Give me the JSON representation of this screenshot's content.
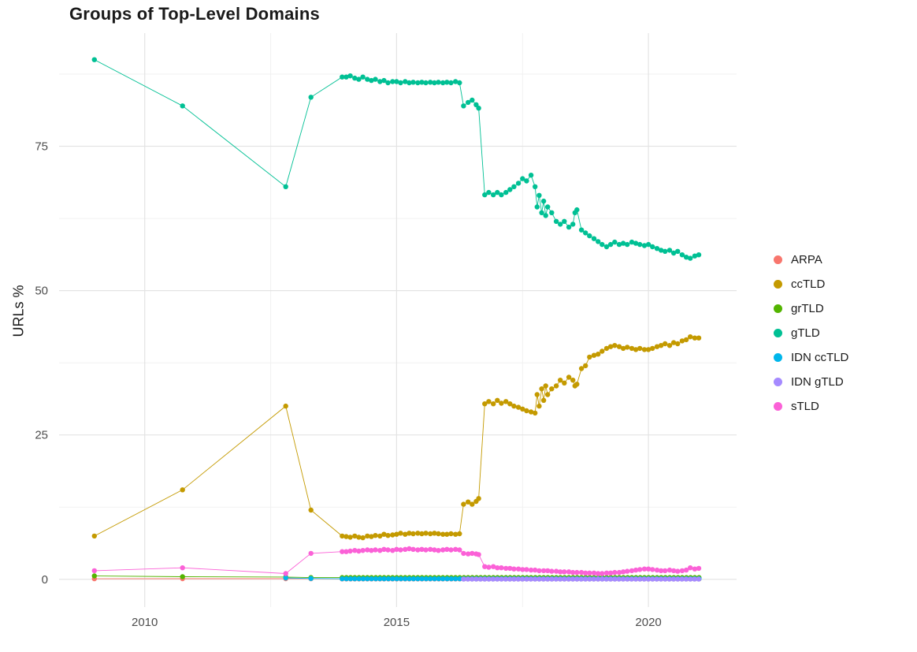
{
  "chart_data": {
    "type": "line",
    "title": "Groups of Top-Level Domains",
    "xlabel": "",
    "ylabel": "URLs %",
    "xlim": [
      2008.3,
      2021.75
    ],
    "ylim": [
      -4.8,
      94.6
    ],
    "x_ticks": [
      2010,
      2015,
      2020
    ],
    "x_tick_labels": [
      "2010",
      "2015",
      "2020"
    ],
    "x_minor": [
      2012.5,
      2017.5
    ],
    "y_ticks": [
      0,
      25,
      50,
      75
    ],
    "y_tick_labels": [
      "0",
      "25",
      "50",
      "75"
    ],
    "y_minor": [
      12.5,
      37.5,
      62.5,
      87.5
    ],
    "grid": true,
    "legend_position": "right",
    "point_radius": 3.2,
    "line_width": 0.9,
    "colors": {
      "background": "#FFFFFF",
      "grid_major": "#E3E3E3",
      "grid_minor": "#F1F1F1",
      "axis_text": "#4D4D4D",
      "title_text": "#1A1A1A"
    },
    "series": [
      {
        "id": "arpa",
        "name": "ARPA",
        "color": "#F8766D",
        "points": [
          [
            2009,
            0.1
          ],
          [
            2010.75,
            0.12
          ],
          [
            2012.8,
            0.12
          ],
          [
            2013.3,
            0.1
          ]
        ],
        "flat": {
          "from": 2013.92,
          "to": 2021,
          "y": 0.08
        }
      },
      {
        "id": "cctld",
        "name": "ccTLD",
        "color": "#C49A00",
        "points": [
          [
            2009,
            7.5
          ],
          [
            2010.75,
            15.5
          ],
          [
            2012.8,
            30
          ],
          [
            2013.3,
            12
          ],
          [
            2013.92,
            7.5
          ],
          [
            2014,
            7.4
          ],
          [
            2014.08,
            7.3
          ],
          [
            2014.17,
            7.5
          ],
          [
            2014.25,
            7.3
          ],
          [
            2014.33,
            7.2
          ],
          [
            2014.42,
            7.5
          ],
          [
            2014.5,
            7.4
          ],
          [
            2014.58,
            7.6
          ],
          [
            2014.67,
            7.5
          ],
          [
            2014.75,
            7.8
          ],
          [
            2014.83,
            7.6
          ],
          [
            2014.92,
            7.7
          ],
          [
            2015,
            7.8
          ],
          [
            2015.08,
            8
          ],
          [
            2015.17,
            7.8
          ],
          [
            2015.25,
            8
          ],
          [
            2015.33,
            7.9
          ],
          [
            2015.42,
            8
          ],
          [
            2015.5,
            7.9
          ],
          [
            2015.58,
            8
          ],
          [
            2015.67,
            7.9
          ],
          [
            2015.75,
            8
          ],
          [
            2015.83,
            7.9
          ],
          [
            2015.92,
            7.8
          ],
          [
            2016,
            7.8
          ],
          [
            2016.08,
            7.9
          ],
          [
            2016.17,
            7.8
          ],
          [
            2016.25,
            7.9
          ],
          [
            2016.33,
            13
          ],
          [
            2016.42,
            13.4
          ],
          [
            2016.5,
            13
          ],
          [
            2016.58,
            13.5
          ],
          [
            2016.63,
            14
          ],
          [
            2016.75,
            30.4
          ],
          [
            2016.83,
            30.8
          ],
          [
            2016.92,
            30.4
          ],
          [
            2017,
            31
          ],
          [
            2017.08,
            30.5
          ],
          [
            2017.17,
            30.8
          ],
          [
            2017.25,
            30.4
          ],
          [
            2017.33,
            30
          ],
          [
            2017.42,
            29.8
          ],
          [
            2017.5,
            29.5
          ],
          [
            2017.58,
            29.2
          ],
          [
            2017.67,
            29
          ],
          [
            2017.75,
            28.8
          ],
          [
            2017.79,
            32
          ],
          [
            2017.83,
            30
          ],
          [
            2017.88,
            33
          ],
          [
            2017.92,
            31
          ],
          [
            2017.96,
            33.5
          ],
          [
            2018,
            32
          ],
          [
            2018.08,
            33
          ],
          [
            2018.17,
            33.5
          ],
          [
            2018.25,
            34.5
          ],
          [
            2018.33,
            34
          ],
          [
            2018.42,
            35
          ],
          [
            2018.5,
            34.5
          ],
          [
            2018.54,
            33.5
          ],
          [
            2018.58,
            33.8
          ],
          [
            2018.67,
            36.5
          ],
          [
            2018.75,
            37
          ],
          [
            2018.83,
            38.5
          ],
          [
            2018.92,
            38.8
          ],
          [
            2019,
            39
          ],
          [
            2019.08,
            39.5
          ],
          [
            2019.17,
            40
          ],
          [
            2019.25,
            40.3
          ],
          [
            2019.33,
            40.5
          ],
          [
            2019.42,
            40.3
          ],
          [
            2019.5,
            40
          ],
          [
            2019.58,
            40.2
          ],
          [
            2019.67,
            40
          ],
          [
            2019.75,
            39.8
          ],
          [
            2019.83,
            40
          ],
          [
            2019.92,
            39.8
          ],
          [
            2020,
            39.8
          ],
          [
            2020.08,
            40
          ],
          [
            2020.17,
            40.3
          ],
          [
            2020.25,
            40.5
          ],
          [
            2020.33,
            40.8
          ],
          [
            2020.42,
            40.5
          ],
          [
            2020.5,
            41
          ],
          [
            2020.58,
            40.8
          ],
          [
            2020.67,
            41.3
          ],
          [
            2020.75,
            41.5
          ],
          [
            2020.83,
            42
          ],
          [
            2020.92,
            41.8
          ],
          [
            2021,
            41.8
          ]
        ]
      },
      {
        "id": "grtld",
        "name": "grTLD",
        "color": "#53B400",
        "points": [
          [
            2009,
            0.6
          ],
          [
            2010.75,
            0.45
          ],
          [
            2012.8,
            0.4
          ],
          [
            2013.3,
            0.3
          ]
        ],
        "flat": {
          "from": 2013.92,
          "to": 2021,
          "y": 0.3
        }
      },
      {
        "id": "gtld",
        "name": "gTLD",
        "color": "#00C094",
        "points": [
          [
            2009,
            90
          ],
          [
            2010.75,
            82
          ],
          [
            2012.8,
            68
          ],
          [
            2013.3,
            83.5
          ],
          [
            2013.92,
            87
          ],
          [
            2014,
            87
          ],
          [
            2014.08,
            87.2
          ],
          [
            2014.17,
            86.8
          ],
          [
            2014.25,
            86.6
          ],
          [
            2014.33,
            87
          ],
          [
            2014.42,
            86.6
          ],
          [
            2014.5,
            86.4
          ],
          [
            2014.58,
            86.6
          ],
          [
            2014.67,
            86.2
          ],
          [
            2014.75,
            86.4
          ],
          [
            2014.83,
            86
          ],
          [
            2014.92,
            86.2
          ],
          [
            2015,
            86.2
          ],
          [
            2015.08,
            86
          ],
          [
            2015.17,
            86.2
          ],
          [
            2015.25,
            86
          ],
          [
            2015.33,
            86.1
          ],
          [
            2015.42,
            86
          ],
          [
            2015.5,
            86.1
          ],
          [
            2015.58,
            86
          ],
          [
            2015.67,
            86.1
          ],
          [
            2015.75,
            86
          ],
          [
            2015.83,
            86.1
          ],
          [
            2015.92,
            86
          ],
          [
            2016,
            86.1
          ],
          [
            2016.08,
            86
          ],
          [
            2016.17,
            86.2
          ],
          [
            2016.25,
            86
          ],
          [
            2016.33,
            82
          ],
          [
            2016.42,
            82.6
          ],
          [
            2016.5,
            83
          ],
          [
            2016.58,
            82.2
          ],
          [
            2016.63,
            81.6
          ],
          [
            2016.75,
            66.6
          ],
          [
            2016.83,
            67
          ],
          [
            2016.92,
            66.6
          ],
          [
            2017,
            67
          ],
          [
            2017.08,
            66.6
          ],
          [
            2017.17,
            67
          ],
          [
            2017.25,
            67.5
          ],
          [
            2017.33,
            68
          ],
          [
            2017.42,
            68.6
          ],
          [
            2017.5,
            69.4
          ],
          [
            2017.58,
            69
          ],
          [
            2017.67,
            70
          ],
          [
            2017.75,
            68
          ],
          [
            2017.79,
            64.5
          ],
          [
            2017.83,
            66.5
          ],
          [
            2017.88,
            63.5
          ],
          [
            2017.92,
            65.5
          ],
          [
            2017.96,
            63
          ],
          [
            2018,
            64.5
          ],
          [
            2018.08,
            63.5
          ],
          [
            2018.17,
            62
          ],
          [
            2018.25,
            61.5
          ],
          [
            2018.33,
            62
          ],
          [
            2018.42,
            61
          ],
          [
            2018.5,
            61.5
          ],
          [
            2018.54,
            63.5
          ],
          [
            2018.58,
            64
          ],
          [
            2018.67,
            60.5
          ],
          [
            2018.75,
            60
          ],
          [
            2018.83,
            59.5
          ],
          [
            2018.92,
            59
          ],
          [
            2019,
            58.5
          ],
          [
            2019.08,
            58
          ],
          [
            2019.17,
            57.6
          ],
          [
            2019.25,
            58
          ],
          [
            2019.33,
            58.4
          ],
          [
            2019.42,
            58
          ],
          [
            2019.5,
            58.2
          ],
          [
            2019.58,
            58
          ],
          [
            2019.67,
            58.4
          ],
          [
            2019.75,
            58.2
          ],
          [
            2019.83,
            58
          ],
          [
            2019.92,
            57.8
          ],
          [
            2020,
            58
          ],
          [
            2020.08,
            57.6
          ],
          [
            2020.17,
            57.3
          ],
          [
            2020.25,
            57
          ],
          [
            2020.33,
            56.8
          ],
          [
            2020.42,
            57
          ],
          [
            2020.5,
            56.5
          ],
          [
            2020.58,
            56.8
          ],
          [
            2020.67,
            56.2
          ],
          [
            2020.75,
            55.8
          ],
          [
            2020.83,
            55.6
          ],
          [
            2020.92,
            56
          ],
          [
            2021,
            56.2
          ]
        ]
      },
      {
        "id": "idn-cctld",
        "name": "IDN ccTLD",
        "color": "#00B6EB",
        "points": [
          [
            2012.8,
            0.25
          ],
          [
            2013.3,
            0.15
          ]
        ],
        "flat": {
          "from": 2013.92,
          "to": 2021,
          "y": 0.1
        }
      },
      {
        "id": "idn-gtld",
        "name": "IDN gTLD",
        "color": "#A58AFF",
        "points": [],
        "flat": {
          "from": 2016.33,
          "to": 2021,
          "y": 0.05
        }
      },
      {
        "id": "stld",
        "name": "sTLD",
        "color": "#FB61D7",
        "points": [
          [
            2009,
            1.5
          ],
          [
            2010.75,
            2
          ],
          [
            2012.8,
            1
          ],
          [
            2013.3,
            4.5
          ],
          [
            2013.92,
            4.8
          ],
          [
            2014,
            4.8
          ],
          [
            2014.08,
            4.9
          ],
          [
            2014.17,
            5
          ],
          [
            2014.25,
            4.9
          ],
          [
            2014.33,
            5
          ],
          [
            2014.42,
            5.1
          ],
          [
            2014.5,
            5
          ],
          [
            2014.58,
            5.1
          ],
          [
            2014.67,
            5
          ],
          [
            2014.75,
            5.2
          ],
          [
            2014.83,
            5.1
          ],
          [
            2014.92,
            5
          ],
          [
            2015,
            5.2
          ],
          [
            2015.08,
            5.1
          ],
          [
            2015.17,
            5.2
          ],
          [
            2015.25,
            5.3
          ],
          [
            2015.33,
            5.2
          ],
          [
            2015.42,
            5.1
          ],
          [
            2015.5,
            5.2
          ],
          [
            2015.58,
            5.1
          ],
          [
            2015.67,
            5.2
          ],
          [
            2015.75,
            5.1
          ],
          [
            2015.83,
            5
          ],
          [
            2015.92,
            5.1
          ],
          [
            2016,
            5.2
          ],
          [
            2016.08,
            5.1
          ],
          [
            2016.17,
            5.2
          ],
          [
            2016.25,
            5.1
          ],
          [
            2016.33,
            4.5
          ],
          [
            2016.42,
            4.4
          ],
          [
            2016.5,
            4.5
          ],
          [
            2016.58,
            4.4
          ],
          [
            2016.63,
            4.3
          ],
          [
            2016.75,
            2.2
          ],
          [
            2016.83,
            2.1
          ],
          [
            2016.92,
            2.2
          ],
          [
            2017,
            2
          ],
          [
            2017.08,
            2
          ],
          [
            2017.17,
            1.9
          ],
          [
            2017.25,
            1.9
          ],
          [
            2017.33,
            1.8
          ],
          [
            2017.42,
            1.8
          ],
          [
            2017.5,
            1.7
          ],
          [
            2017.58,
            1.7
          ],
          [
            2017.67,
            1.6
          ],
          [
            2017.75,
            1.6
          ],
          [
            2017.83,
            1.5
          ],
          [
            2017.92,
            1.5
          ],
          [
            2018,
            1.5
          ],
          [
            2018.08,
            1.4
          ],
          [
            2018.17,
            1.4
          ],
          [
            2018.25,
            1.3
          ],
          [
            2018.33,
            1.3
          ],
          [
            2018.42,
            1.3
          ],
          [
            2018.5,
            1.2
          ],
          [
            2018.58,
            1.2
          ],
          [
            2018.67,
            1.2
          ],
          [
            2018.75,
            1.1
          ],
          [
            2018.83,
            1.1
          ],
          [
            2018.92,
            1.1
          ],
          [
            2019,
            1
          ],
          [
            2019.08,
            1
          ],
          [
            2019.17,
            1.1
          ],
          [
            2019.25,
            1.1
          ],
          [
            2019.33,
            1.2
          ],
          [
            2019.42,
            1.2
          ],
          [
            2019.5,
            1.3
          ],
          [
            2019.58,
            1.4
          ],
          [
            2019.67,
            1.5
          ],
          [
            2019.75,
            1.6
          ],
          [
            2019.83,
            1.7
          ],
          [
            2019.92,
            1.8
          ],
          [
            2020,
            1.8
          ],
          [
            2020.08,
            1.7
          ],
          [
            2020.17,
            1.6
          ],
          [
            2020.25,
            1.5
          ],
          [
            2020.33,
            1.5
          ],
          [
            2020.42,
            1.6
          ],
          [
            2020.5,
            1.5
          ],
          [
            2020.58,
            1.4
          ],
          [
            2020.67,
            1.5
          ],
          [
            2020.75,
            1.6
          ],
          [
            2020.83,
            2
          ],
          [
            2020.92,
            1.8
          ],
          [
            2021,
            1.9
          ]
        ]
      }
    ]
  }
}
